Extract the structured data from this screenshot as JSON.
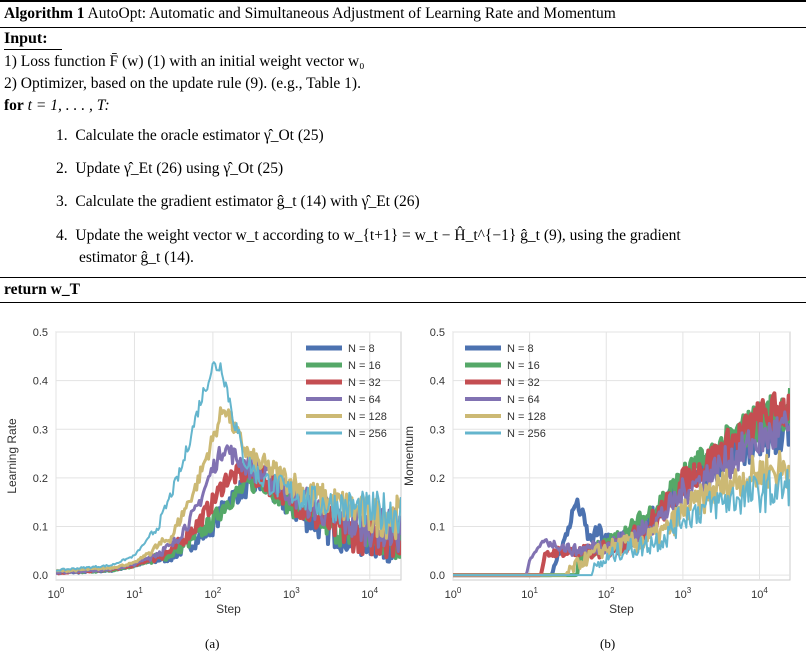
{
  "algorithm": {
    "label": "Algorithm 1",
    "title": "AutoOpt: Automatic and Simultaneous Adjustment of Learning Rate and Momentum",
    "input_heading": "Input:",
    "input_1": "1) Loss function F̄ (w) (1) with an initial weight vector w₀",
    "input_2": "2) Optimizer, based on the update rule (9). (e.g., Table 1).",
    "for_keyword": "for",
    "for_range": "t = 1, . . . , T:",
    "steps": [
      {
        "num": "1.",
        "text": "Calculate the oracle estimator γ̂_Ot (25)"
      },
      {
        "num": "2.",
        "text": "Update γ̂_Et (26) using γ̂_Ot (25)"
      },
      {
        "num": "3.",
        "text": "Calculate the gradient estimator ĝ_t (14) with γ̂_Et (26)"
      },
      {
        "num": "4.",
        "text_line1": "Update the weight vector w_t according to w_{t+1} = w_t − Ĥ_t^{−1} ĝ_t (9), using the gradient",
        "text_line2": "estimator ĝ_t (14)."
      }
    ],
    "return_keyword": "return",
    "return_value": "w_T"
  },
  "chart_data": [
    {
      "type": "line",
      "panel_label": "(a)",
      "xlabel": "Step",
      "ylabel": "Learning Rate",
      "xscale": "log",
      "xlim": [
        1,
        25000
      ],
      "ylim": [
        -0.01,
        0.5
      ],
      "xticks": [
        "10^0",
        "10^1",
        "10^2",
        "10^3",
        "10^4"
      ],
      "yticks": [
        "0.0",
        "0.1",
        "0.2",
        "0.3",
        "0.4",
        "0.5"
      ],
      "grid": true,
      "legend_position": "top-right",
      "series": [
        {
          "name": "N = 8",
          "color": "#4c72b0",
          "width": 4,
          "points": [
            [
              1,
              0.005
            ],
            [
              5,
              0.01
            ],
            [
              10,
              0.02
            ],
            [
              30,
              0.04
            ],
            [
              60,
              0.07
            ],
            [
              100,
              0.1
            ],
            [
              150,
              0.15
            ],
            [
              250,
              0.18
            ],
            [
              400,
              0.19
            ],
            [
              700,
              0.16
            ],
            [
              1000,
              0.14
            ],
            [
              2000,
              0.11
            ],
            [
              5000,
              0.08
            ],
            [
              10000,
              0.075
            ],
            [
              25000,
              0.07
            ]
          ]
        },
        {
          "name": "N = 16",
          "color": "#55a868",
          "width": 4,
          "points": [
            [
              1,
              0.005
            ],
            [
              5,
              0.01
            ],
            [
              10,
              0.02
            ],
            [
              30,
              0.045
            ],
            [
              60,
              0.08
            ],
            [
              100,
              0.11
            ],
            [
              150,
              0.15
            ],
            [
              250,
              0.18
            ],
            [
              400,
              0.2
            ],
            [
              700,
              0.17
            ],
            [
              1000,
              0.15
            ],
            [
              2000,
              0.12
            ],
            [
              5000,
              0.09
            ],
            [
              10000,
              0.08
            ],
            [
              25000,
              0.075
            ]
          ]
        },
        {
          "name": "N = 32",
          "color": "#c44e52",
          "width": 4,
          "points": [
            [
              1,
              0.005
            ],
            [
              5,
              0.012
            ],
            [
              10,
              0.02
            ],
            [
              30,
              0.05
            ],
            [
              60,
              0.1
            ],
            [
              100,
              0.15
            ],
            [
              150,
              0.2
            ],
            [
              250,
              0.21
            ],
            [
              400,
              0.2
            ],
            [
              700,
              0.18
            ],
            [
              1000,
              0.16
            ],
            [
              2000,
              0.12
            ],
            [
              5000,
              0.09
            ],
            [
              10000,
              0.08
            ],
            [
              25000,
              0.08
            ]
          ]
        },
        {
          "name": "N = 64",
          "color": "#8172b2",
          "width": 3,
          "points": [
            [
              1,
              0.005
            ],
            [
              5,
              0.012
            ],
            [
              10,
              0.022
            ],
            [
              30,
              0.06
            ],
            [
              60,
              0.13
            ],
            [
              100,
              0.22
            ],
            [
              140,
              0.265
            ],
            [
              200,
              0.24
            ],
            [
              300,
              0.22
            ],
            [
              500,
              0.2
            ],
            [
              1000,
              0.17
            ],
            [
              2000,
              0.14
            ],
            [
              5000,
              0.11
            ],
            [
              10000,
              0.1
            ],
            [
              25000,
              0.09
            ]
          ]
        },
        {
          "name": "N = 128",
          "color": "#ccb974",
          "width": 3,
          "points": [
            [
              1,
              0.008
            ],
            [
              5,
              0.015
            ],
            [
              10,
              0.025
            ],
            [
              30,
              0.08
            ],
            [
              60,
              0.18
            ],
            [
              100,
              0.28
            ],
            [
              140,
              0.35
            ],
            [
              200,
              0.29
            ],
            [
              300,
              0.24
            ],
            [
              500,
              0.22
            ],
            [
              1000,
              0.19
            ],
            [
              2000,
              0.16
            ],
            [
              5000,
              0.14
            ],
            [
              10000,
              0.12
            ],
            [
              25000,
              0.12
            ]
          ]
        },
        {
          "name": "N = 256",
          "color": "#64b5cd",
          "width": 2,
          "points": [
            [
              1,
              0.01
            ],
            [
              5,
              0.02
            ],
            [
              10,
              0.04
            ],
            [
              20,
              0.1
            ],
            [
              40,
              0.22
            ],
            [
              70,
              0.36
            ],
            [
              100,
              0.43
            ],
            [
              130,
              0.43
            ],
            [
              180,
              0.33
            ],
            [
              250,
              0.24
            ],
            [
              400,
              0.2
            ],
            [
              700,
              0.18
            ],
            [
              1000,
              0.17
            ],
            [
              2000,
              0.15
            ],
            [
              5000,
              0.14
            ],
            [
              10000,
              0.13
            ],
            [
              25000,
              0.13
            ]
          ]
        }
      ]
    },
    {
      "type": "line",
      "panel_label": "(b)",
      "xlabel": "Step",
      "ylabel": "Momentum",
      "xscale": "log",
      "xlim": [
        1,
        25000
      ],
      "ylim": [
        -0.01,
        0.5
      ],
      "xticks": [
        "10^0",
        "10^1",
        "10^2",
        "10^3",
        "10^4"
      ],
      "yticks": [
        "0.0",
        "0.1",
        "0.2",
        "0.3",
        "0.4",
        "0.5"
      ],
      "grid": true,
      "legend_position": "top-left",
      "series": [
        {
          "name": "N = 8",
          "color": "#4c72b0",
          "width": 4,
          "points": [
            [
              1,
              0
            ],
            [
              20,
              0
            ],
            [
              22,
              0.03
            ],
            [
              30,
              0.08
            ],
            [
              40,
              0.15
            ],
            [
              50,
              0.12
            ],
            [
              60,
              0.07
            ],
            [
              80,
              0.09
            ],
            [
              100,
              0.07
            ],
            [
              200,
              0.08
            ],
            [
              400,
              0.12
            ],
            [
              1000,
              0.18
            ],
            [
              3000,
              0.24
            ],
            [
              10000,
              0.28
            ],
            [
              25000,
              0.3
            ]
          ]
        },
        {
          "name": "N = 16",
          "color": "#55a868",
          "width": 4,
          "points": [
            [
              1,
              0
            ],
            [
              40,
              0
            ],
            [
              45,
              0.03
            ],
            [
              60,
              0.05
            ],
            [
              100,
              0.06
            ],
            [
              200,
              0.09
            ],
            [
              400,
              0.13
            ],
            [
              1000,
              0.2
            ],
            [
              3000,
              0.26
            ],
            [
              10000,
              0.32
            ],
            [
              25000,
              0.35
            ]
          ]
        },
        {
          "name": "N = 32",
          "color": "#c44e52",
          "width": 4,
          "points": [
            [
              1,
              0
            ],
            [
              14,
              0
            ],
            [
              16,
              0.04
            ],
            [
              25,
              0.05
            ],
            [
              40,
              0.045
            ],
            [
              80,
              0.05
            ],
            [
              150,
              0.06
            ],
            [
              300,
              0.09
            ],
            [
              600,
              0.14
            ],
            [
              1000,
              0.19
            ],
            [
              3000,
              0.25
            ],
            [
              10000,
              0.32
            ],
            [
              25000,
              0.35
            ]
          ]
        },
        {
          "name": "N = 64",
          "color": "#8172b2",
          "width": 3,
          "points": [
            [
              1,
              0
            ],
            [
              9,
              0
            ],
            [
              10,
              0.03
            ],
            [
              15,
              0.07
            ],
            [
              25,
              0.06
            ],
            [
              40,
              0.05
            ],
            [
              80,
              0.06
            ],
            [
              150,
              0.07
            ],
            [
              300,
              0.09
            ],
            [
              600,
              0.13
            ],
            [
              1000,
              0.17
            ],
            [
              3000,
              0.22
            ],
            [
              10000,
              0.28
            ],
            [
              25000,
              0.3
            ]
          ]
        },
        {
          "name": "N = 128",
          "color": "#ccb974",
          "width": 3,
          "points": [
            [
              1,
              0
            ],
            [
              30,
              0
            ],
            [
              40,
              0.02
            ],
            [
              80,
              0.05
            ],
            [
              150,
              0.06
            ],
            [
              300,
              0.07
            ],
            [
              600,
              0.09
            ],
            [
              1000,
              0.13
            ],
            [
              3000,
              0.18
            ],
            [
              10000,
              0.21
            ],
            [
              25000,
              0.22
            ]
          ]
        },
        {
          "name": "N = 256",
          "color": "#64b5cd",
          "width": 2,
          "points": [
            [
              1,
              0
            ],
            [
              60,
              0
            ],
            [
              80,
              0.02
            ],
            [
              150,
              0.05
            ],
            [
              300,
              0.06
            ],
            [
              600,
              0.08
            ],
            [
              1000,
              0.12
            ],
            [
              3000,
              0.15
            ],
            [
              10000,
              0.17
            ],
            [
              25000,
              0.18
            ]
          ]
        }
      ]
    }
  ]
}
